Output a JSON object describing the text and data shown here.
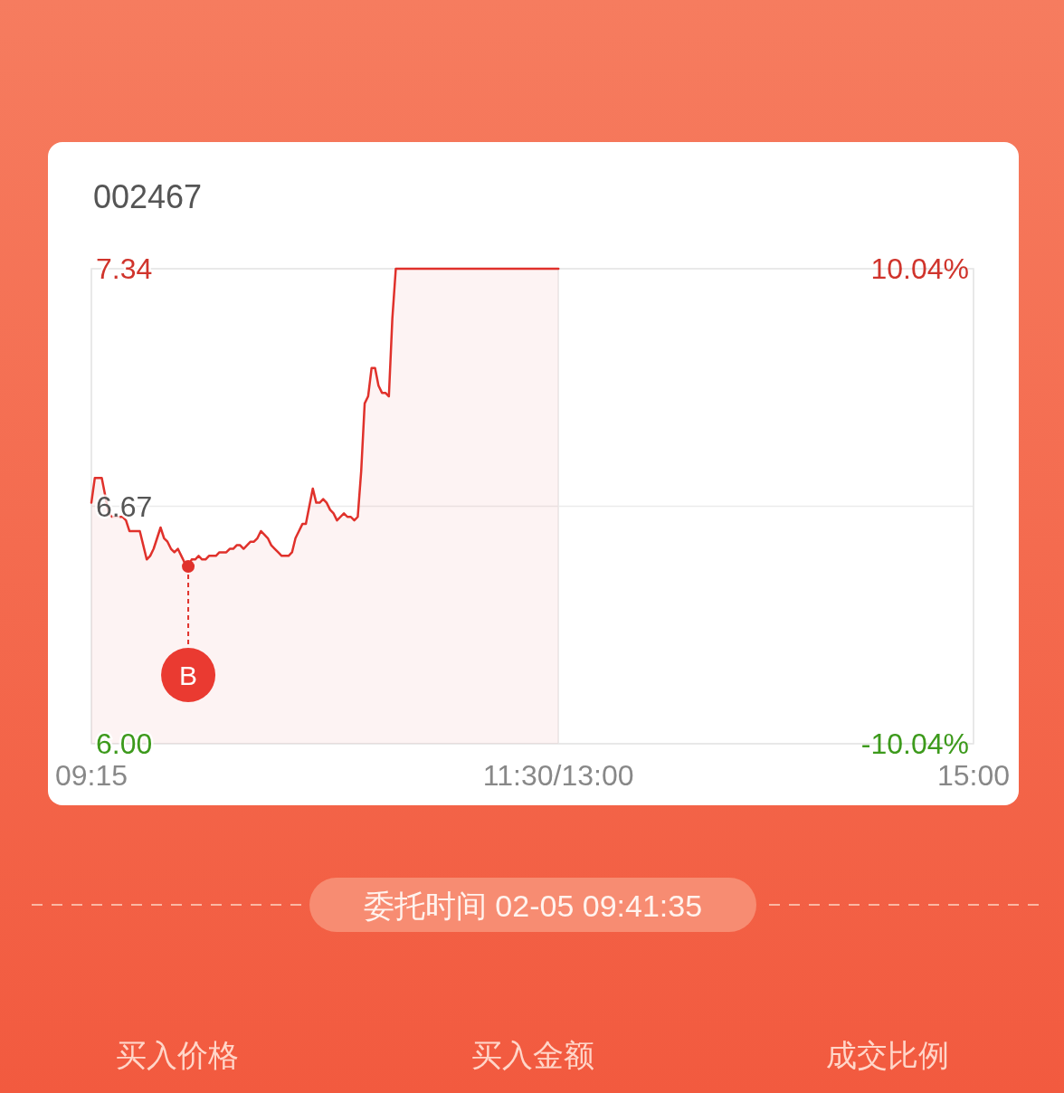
{
  "chart_data": {
    "type": "area",
    "title": "002467",
    "categories": [
      "09:15",
      null,
      null,
      null,
      null,
      null,
      null,
      null,
      null,
      null,
      null,
      null,
      null,
      null,
      null,
      null,
      null,
      null,
      null,
      null,
      null,
      null,
      null,
      null,
      null,
      null,
      null,
      null,
      null,
      null,
      null,
      null,
      null,
      null,
      null,
      null,
      null,
      null,
      null,
      null,
      null,
      null,
      null,
      null,
      null,
      null,
      null,
      null,
      null,
      null,
      null,
      null,
      null,
      null,
      null,
      null,
      null,
      null,
      null,
      null,
      null,
      null,
      null,
      null,
      null,
      null,
      null,
      null,
      null,
      null,
      null,
      null,
      null,
      null,
      null,
      null,
      null,
      null,
      null,
      null,
      null,
      null,
      null,
      null,
      null,
      null,
      null,
      null,
      null,
      null,
      null,
      null,
      null,
      null,
      null,
      null,
      null,
      null,
      null,
      null,
      null,
      null,
      null,
      null,
      null,
      null,
      null,
      null,
      null,
      null,
      null,
      null,
      null,
      null,
      null,
      null,
      null,
      null,
      null,
      null,
      null,
      null,
      null,
      null,
      null,
      null,
      null,
      null,
      null,
      null,
      null,
      null,
      null,
      null,
      null,
      "11:30/13:00",
      null,
      null,
      null,
      null,
      null,
      null,
      null,
      null,
      null,
      null,
      null,
      null,
      null,
      null,
      null,
      null,
      null,
      null,
      null,
      null,
      null,
      null,
      null,
      null,
      null,
      null,
      null,
      null,
      null,
      null,
      null,
      null,
      null,
      null,
      null,
      null,
      null,
      null,
      null,
      null,
      null,
      null,
      null,
      null,
      null,
      null,
      null,
      null,
      null,
      null,
      null,
      null,
      null,
      null,
      null,
      null,
      null,
      null,
      null,
      null,
      null,
      null,
      null,
      null,
      null,
      null,
      null,
      null,
      null,
      null,
      null,
      null,
      null,
      null,
      null,
      null,
      null,
      null,
      null,
      null,
      null,
      null,
      null,
      null,
      null,
      null,
      null,
      null,
      null,
      null,
      null,
      null,
      null,
      null,
      null,
      null,
      null,
      null,
      null,
      null,
      null,
      null,
      null,
      null,
      null,
      null,
      null,
      null,
      null,
      null,
      null,
      null,
      null,
      null,
      null,
      null,
      null,
      null,
      null,
      "15:00"
    ],
    "values": [
      6.68,
      6.75,
      6.75,
      6.75,
      6.7,
      6.65,
      6.64,
      6.64,
      6.64,
      6.64,
      6.63,
      6.6,
      6.6,
      6.6,
      6.6,
      6.56,
      6.52,
      6.53,
      6.55,
      6.58,
      6.61,
      6.58,
      6.57,
      6.55,
      6.54,
      6.55,
      6.53,
      6.51,
      6.5,
      6.52,
      6.52,
      6.53,
      6.52,
      6.52,
      6.53,
      6.53,
      6.53,
      6.54,
      6.54,
      6.54,
      6.55,
      6.55,
      6.56,
      6.56,
      6.55,
      6.56,
      6.57,
      6.57,
      6.58,
      6.6,
      6.59,
      6.58,
      6.56,
      6.55,
      6.54,
      6.53,
      6.53,
      6.53,
      6.54,
      6.58,
      6.6,
      6.62,
      6.62,
      6.67,
      6.72,
      6.68,
      6.68,
      6.69,
      6.68,
      6.66,
      6.65,
      6.63,
      6.64,
      6.65,
      6.64,
      6.64,
      6.63,
      6.64,
      6.77,
      6.96,
      6.98,
      7.06,
      7.06,
      7.01,
      6.99,
      6.99,
      6.98,
      7.2,
      7.34,
      7.34,
      7.34,
      7.34,
      7.34,
      7.34,
      7.34,
      7.34,
      7.34,
      7.34,
      7.34,
      7.34,
      7.34,
      7.34,
      7.34,
      7.34,
      7.34,
      7.34,
      7.34,
      7.34,
      7.34,
      7.34,
      7.34,
      7.34,
      7.34,
      7.34,
      7.34,
      7.34,
      7.34,
      7.34,
      7.34,
      7.34,
      7.34,
      7.34,
      7.34,
      7.34,
      7.34,
      7.34,
      7.34,
      7.34,
      7.34,
      7.34,
      7.34,
      7.34,
      7.34,
      7.34,
      7.34,
      7.34,
      null,
      null,
      null,
      null,
      null,
      null,
      null,
      null,
      null,
      null,
      null,
      null,
      null,
      null,
      null,
      null,
      null,
      null,
      null,
      null,
      null,
      null,
      null,
      null,
      null,
      null,
      null,
      null,
      null,
      null,
      null,
      null,
      null,
      null,
      null,
      null,
      null,
      null,
      null,
      null,
      null,
      null,
      null,
      null,
      null,
      null,
      null,
      null,
      null,
      null,
      null,
      null,
      null,
      null,
      null,
      null,
      null,
      null,
      null,
      null,
      null,
      null,
      null,
      null,
      null,
      null,
      null,
      null,
      null,
      null,
      null,
      null,
      null,
      null,
      null,
      null,
      null,
      null,
      null,
      null,
      null,
      null,
      null,
      null,
      null,
      null,
      null,
      null,
      null,
      null,
      null,
      null,
      null,
      null,
      null,
      null,
      null,
      null,
      null,
      null,
      null,
      null,
      null,
      null,
      null,
      null,
      null,
      null,
      null,
      null,
      null,
      null,
      null,
      null,
      null,
      null,
      null,
      null,
      null,
      null
    ],
    "color": "#e0312b",
    "ylim": [
      6.0,
      7.34
    ],
    "yticks": [
      {
        "value": 6.0,
        "label": "6.00"
      },
      {
        "value": 6.67,
        "label": "6.67"
      },
      {
        "value": 7.34,
        "label": "7.34"
      }
    ],
    "y2lim": [
      -10.04,
      10.04
    ],
    "y2ticks": [
      {
        "value": -10.04,
        "label": "-10.04%"
      },
      {
        "value": 10.04,
        "label": "10.04%"
      }
    ],
    "grid": true,
    "annotations": [
      {
        "text": "B",
        "y": 6.5
      },
      "委托时间 02-05 09:41:35",
      "买入价格",
      "买入金额",
      "成交比例"
    ]
  }
}
